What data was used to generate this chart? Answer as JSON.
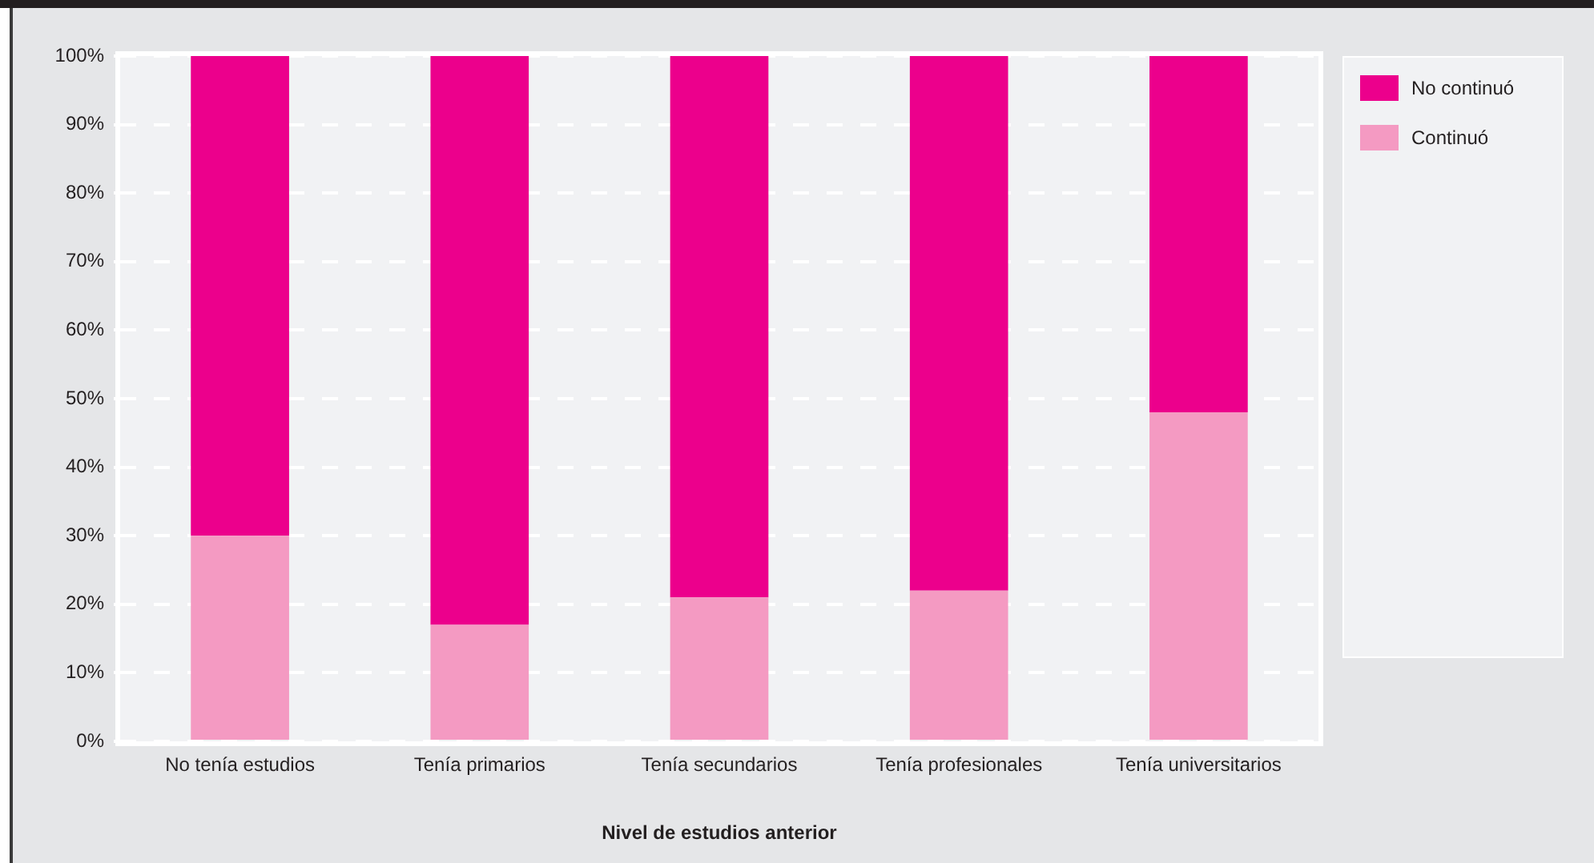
{
  "chart_data": {
    "type": "bar",
    "stacked": true,
    "xlabel": "Nivel de estudios anterior",
    "categories": [
      "No tenía estudios",
      "Tenía primarios",
      "Tenía secundarios",
      "Tenía profesionales",
      "Tenía universitarios"
    ],
    "series": [
      {
        "name": "Continuó",
        "color": "#f49ac2",
        "values": [
          30,
          17,
          21,
          22,
          48
        ]
      },
      {
        "name": "No continuó",
        "color": "#ec008c",
        "values": [
          70,
          83,
          79,
          78,
          52
        ]
      }
    ],
    "ylim": [
      0,
      100
    ],
    "yticks": [
      {
        "value": 0,
        "label": "0%"
      },
      {
        "value": 10,
        "label": "10%"
      },
      {
        "value": 20,
        "label": "20%"
      },
      {
        "value": 30,
        "label": "30%"
      },
      {
        "value": 40,
        "label": "40%"
      },
      {
        "value": 50,
        "label": "50%"
      },
      {
        "value": 60,
        "label": "60%"
      },
      {
        "value": 70,
        "label": "70%"
      },
      {
        "value": 80,
        "label": "80%"
      },
      {
        "value": 90,
        "label": "90%"
      },
      {
        "value": 100,
        "label": "100%"
      }
    ],
    "grid": "y",
    "legend": "right"
  }
}
